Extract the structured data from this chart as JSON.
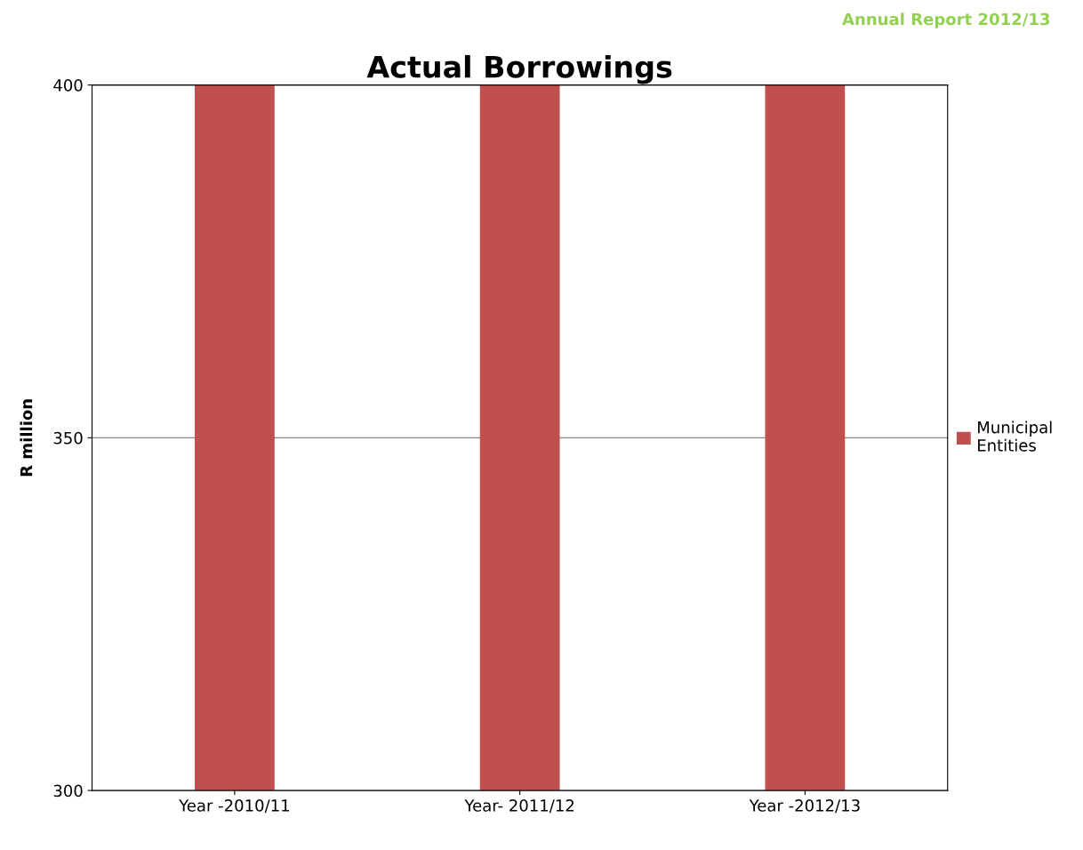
{
  "chart_data": {
    "type": "bar",
    "title": "Actual Borrowings",
    "ylabel": "R million",
    "categories": [
      "Year -2010/11",
      "Year- 2011/12",
      "Year -2012/13"
    ],
    "series": [
      {
        "name": "Municipal Entities",
        "color": "#c0504d",
        "values": [
          400,
          400,
          400
        ]
      }
    ],
    "ylim": [
      300,
      400
    ],
    "yticks": [
      300,
      350,
      400
    ],
    "grid": "y",
    "legend": "right",
    "annotations": [
      "Annual Report 2012/13"
    ]
  }
}
